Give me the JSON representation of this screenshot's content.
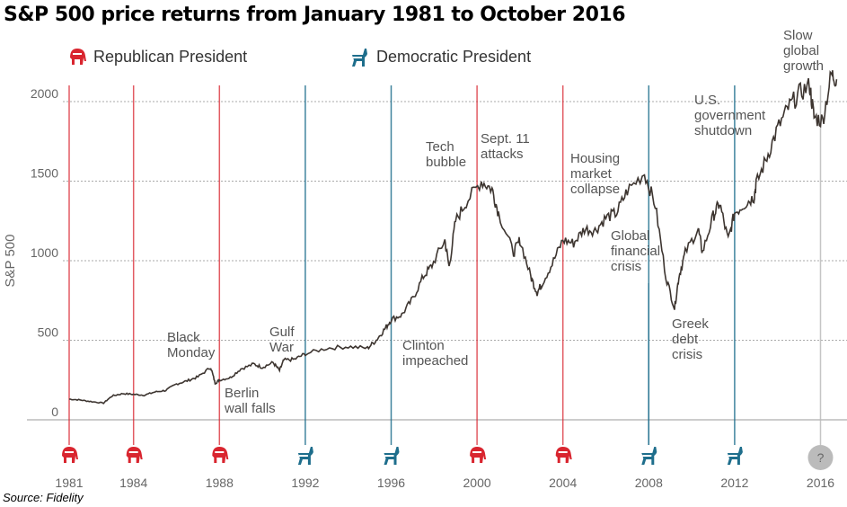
{
  "chart_data": {
    "type": "line",
    "title": "S&P 500 price returns from January 1981 to October 2016",
    "ylabel": "S&P 500",
    "ylim": [
      0,
      2200
    ],
    "xlim": [
      1981,
      2017
    ],
    "yticks": [
      "0",
      "500",
      "1000",
      "1500",
      "2000"
    ],
    "xticks": [
      "1981",
      "1984",
      "1988",
      "1992",
      "1996",
      "2000",
      "2004",
      "2008",
      "2012",
      "2016"
    ],
    "legend": {
      "republican": "Republican President",
      "democratic": "Democratic President"
    },
    "colors": {
      "republican": "#d9252f",
      "democratic": "#1e6e8c",
      "line": "#3d3530",
      "unknown": "#bbbbbb"
    },
    "presidents": [
      {
        "year": 1981,
        "party": "republican"
      },
      {
        "year": 1984,
        "party": "republican"
      },
      {
        "year": 1988,
        "party": "republican"
      },
      {
        "year": 1992,
        "party": "democratic"
      },
      {
        "year": 1996,
        "party": "democratic"
      },
      {
        "year": 2000,
        "party": "republican"
      },
      {
        "year": 2004,
        "party": "republican"
      },
      {
        "year": 2008,
        "party": "democratic"
      },
      {
        "year": 2012,
        "party": "democratic"
      },
      {
        "year": 2016,
        "party": "unknown",
        "label": "?"
      }
    ],
    "series": [
      {
        "name": "S&P 500",
        "x": [
          1981,
          1981.5,
          1982,
          1982.6,
          1983,
          1983.5,
          1984,
          1984.5,
          1985,
          1985.5,
          1986,
          1986.5,
          1987,
          1987.6,
          1987.8,
          1988,
          1988.5,
          1989,
          1989.6,
          1990,
          1990.5,
          1990.8,
          1991,
          1991.5,
          1992,
          1993,
          1994,
          1994.9,
          1995.3,
          1995.7,
          1996,
          1996.5,
          1997,
          1997.5,
          1997.9,
          1998.5,
          1998.7,
          1999,
          1999.5,
          2000.2,
          2000.7,
          2001,
          2001.7,
          2002,
          2002.5,
          2002.8,
          2003,
          2003.5,
          2004,
          2004.5,
          2005,
          2005.5,
          2006,
          2006.5,
          2007,
          2007.8,
          2008.3,
          2008.8,
          2009.2,
          2009.4,
          2009.7,
          2010.3,
          2010.5,
          2011,
          2011.3,
          2011.7,
          2012,
          2012.5,
          2012.9,
          2013,
          2013.5,
          2014,
          2014.5,
          2015,
          2015.5,
          2015.7,
          2016.1,
          2016.5,
          2016.75
        ],
        "y": [
          130,
          125,
          115,
          105,
          150,
          165,
          160,
          155,
          175,
          185,
          225,
          245,
          270,
          330,
          230,
          250,
          265,
          320,
          350,
          330,
          360,
          310,
          375,
          380,
          415,
          450,
          460,
          450,
          500,
          570,
          630,
          660,
          760,
          900,
          970,
          1130,
          960,
          1250,
          1370,
          1500,
          1450,
          1300,
          1050,
          1130,
          900,
          800,
          850,
          980,
          1130,
          1110,
          1200,
          1190,
          1270,
          1300,
          1440,
          1550,
          1350,
          900,
          700,
          900,
          1050,
          1200,
          1050,
          1280,
          1360,
          1130,
          1300,
          1360,
          1400,
          1480,
          1650,
          1830,
          1960,
          2050,
          2100,
          1900,
          1880,
          2170,
          2140
        ]
      }
    ],
    "annotations": [
      {
        "text": [
          "Black",
          "Monday"
        ]
      },
      {
        "text": [
          "Berlin",
          "wall falls"
        ]
      },
      {
        "text": [
          "Gulf",
          "War"
        ]
      },
      {
        "text": [
          "Clinton",
          "impeached"
        ]
      },
      {
        "text": [
          "Tech",
          "bubble"
        ]
      },
      {
        "text": [
          "Sept. 11",
          "attacks"
        ]
      },
      {
        "text": [
          "Housing",
          "market",
          "collapse"
        ]
      },
      {
        "text": [
          "Global",
          "financial",
          "crisis"
        ]
      },
      {
        "text": [
          "Greek",
          "debt",
          "crisis"
        ]
      },
      {
        "text": [
          "U.S.",
          "government",
          "shutdown"
        ]
      },
      {
        "text": [
          "Slow",
          "global",
          "growth"
        ]
      }
    ]
  },
  "source": "Source: Fidelity"
}
